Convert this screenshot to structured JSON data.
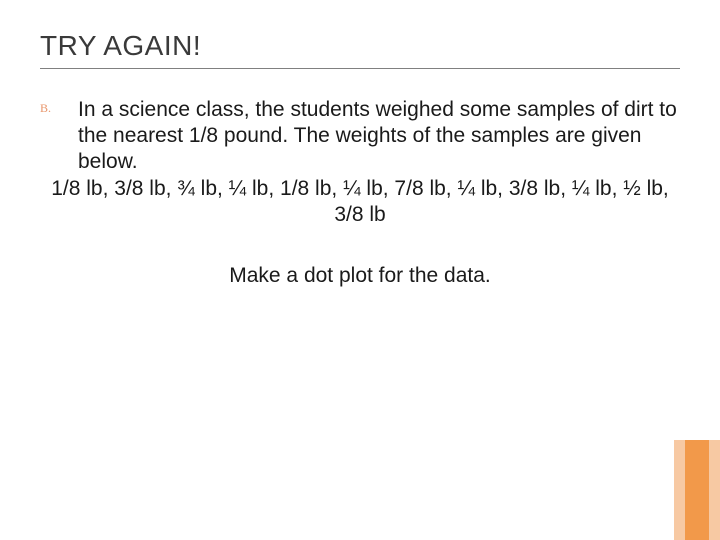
{
  "slide": {
    "title": "TRY AGAIN!",
    "list_marker": "B.",
    "intro": "In a science class, the students weighed some samples of dirt to the nearest 1/8 pound. The weights of the samples are given below.",
    "weights_line": "1/8 lb, 3/8 lb, ¾ lb, ¼ lb, 1/8 lb, ¼ lb, 7/8 lb, ¼ lb, 3/8 lb, ¼ lb, ½ lb, 3/8 lb",
    "instruction": "Make a dot plot for the data."
  },
  "style": {
    "background_color": "#ffffff",
    "title_color": "#3a3a3a",
    "title_fontsize": 28,
    "body_fontsize": 21,
    "body_color": "#1a1a1a",
    "rule_color": "#808080",
    "marker_color": "#e8956a",
    "accent_outer": "#f7c9a3",
    "accent_inner": "#f2994a"
  }
}
